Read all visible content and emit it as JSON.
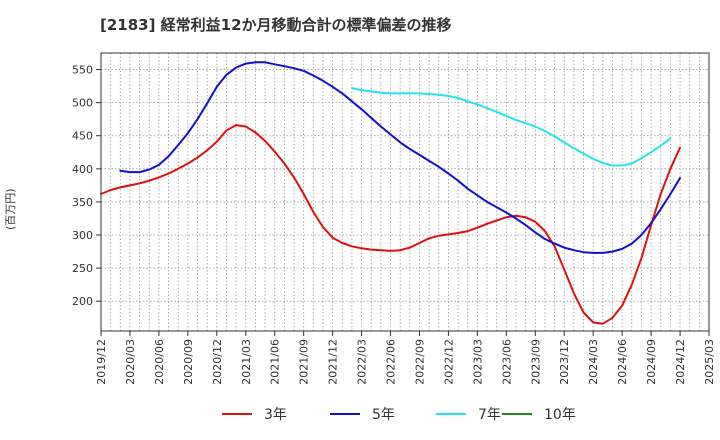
{
  "chart_data": {
    "type": "line",
    "title": "[2183]  経常利益12か月移動合計の標準偏差の推移",
    "xlabel": "",
    "ylabel": "(百万円)",
    "x": [
      "2019/12",
      "2020/03",
      "2020/06",
      "2020/09",
      "2020/12",
      "2021/03",
      "2021/06",
      "2021/09",
      "2021/12",
      "2022/03",
      "2022/06",
      "2022/09",
      "2022/12",
      "2023/03",
      "2023/06",
      "2023/09",
      "2023/12",
      "2024/03",
      "2024/06",
      "2024/09",
      "2024/12",
      "2025/03"
    ],
    "ylim": [
      155,
      575
    ],
    "yticks": [
      200,
      250,
      300,
      350,
      400,
      450,
      500,
      550
    ],
    "grid": true,
    "legend_position": "bottom",
    "series": [
      {
        "name": "3年",
        "color": "#dd1111",
        "points": [
          [
            "2019/12",
            362
          ],
          [
            "2020/01",
            368
          ],
          [
            "2020/02",
            372
          ],
          [
            "2020/03",
            375
          ],
          [
            "2020/04",
            378
          ],
          [
            "2020/05",
            382
          ],
          [
            "2020/06",
            387
          ],
          [
            "2020/07",
            393
          ],
          [
            "2020/08",
            400
          ],
          [
            "2020/09",
            408
          ],
          [
            "2020/10",
            417
          ],
          [
            "2020/11",
            428
          ],
          [
            "2020/12",
            441
          ],
          [
            "2021/01",
            458
          ],
          [
            "2021/02",
            466
          ],
          [
            "2021/03",
            464
          ],
          [
            "2021/04",
            455
          ],
          [
            "2021/05",
            442
          ],
          [
            "2021/06",
            426
          ],
          [
            "2021/07",
            408
          ],
          [
            "2021/08",
            387
          ],
          [
            "2021/09",
            362
          ],
          [
            "2021/10",
            335
          ],
          [
            "2021/11",
            312
          ],
          [
            "2021/12",
            296
          ],
          [
            "2022/01",
            288
          ],
          [
            "2022/02",
            283
          ],
          [
            "2022/03",
            280
          ],
          [
            "2022/04",
            278
          ],
          [
            "2022/05",
            277
          ],
          [
            "2022/06",
            276
          ],
          [
            "2022/07",
            277
          ],
          [
            "2022/08",
            281
          ],
          [
            "2022/09",
            288
          ],
          [
            "2022/10",
            295
          ],
          [
            "2022/11",
            299
          ],
          [
            "2022/12",
            301
          ],
          [
            "2023/01",
            303
          ],
          [
            "2023/02",
            306
          ],
          [
            "2023/03",
            311
          ],
          [
            "2023/04",
            317
          ],
          [
            "2023/05",
            322
          ],
          [
            "2023/06",
            327
          ],
          [
            "2023/07",
            329
          ],
          [
            "2023/08",
            327
          ],
          [
            "2023/09",
            320
          ],
          [
            "2023/10",
            306
          ],
          [
            "2023/11",
            283
          ],
          [
            "2023/12",
            248
          ],
          [
            "2024/01",
            212
          ],
          [
            "2024/02",
            183
          ],
          [
            "2024/03",
            168
          ],
          [
            "2024/04",
            166
          ],
          [
            "2024/05",
            175
          ],
          [
            "2024/06",
            193
          ],
          [
            "2024/07",
            225
          ],
          [
            "2024/08",
            265
          ],
          [
            "2024/09",
            315
          ],
          [
            "2024/10",
            362
          ],
          [
            "2024/11",
            400
          ],
          [
            "2024/12",
            432
          ]
        ]
      },
      {
        "name": "5年",
        "color": "#1111cc",
        "points": [
          [
            "2020/02",
            397
          ],
          [
            "2020/03",
            395
          ],
          [
            "2020/04",
            395
          ],
          [
            "2020/05",
            399
          ],
          [
            "2020/06",
            406
          ],
          [
            "2020/07",
            419
          ],
          [
            "2020/08",
            436
          ],
          [
            "2020/09",
            454
          ],
          [
            "2020/10",
            475
          ],
          [
            "2020/11",
            499
          ],
          [
            "2020/12",
            524
          ],
          [
            "2021/01",
            542
          ],
          [
            "2021/02",
            553
          ],
          [
            "2021/03",
            559
          ],
          [
            "2021/04",
            561
          ],
          [
            "2021/05",
            561
          ],
          [
            "2021/06",
            558
          ],
          [
            "2021/07",
            555
          ],
          [
            "2021/08",
            552
          ],
          [
            "2021/09",
            548
          ],
          [
            "2021/10",
            541
          ],
          [
            "2021/11",
            533
          ],
          [
            "2021/12",
            524
          ],
          [
            "2022/01",
            514
          ],
          [
            "2022/02",
            502
          ],
          [
            "2022/03",
            490
          ],
          [
            "2022/04",
            477
          ],
          [
            "2022/05",
            464
          ],
          [
            "2022/06",
            452
          ],
          [
            "2022/07",
            440
          ],
          [
            "2022/08",
            430
          ],
          [
            "2022/09",
            421
          ],
          [
            "2022/10",
            412
          ],
          [
            "2022/11",
            403
          ],
          [
            "2022/12",
            393
          ],
          [
            "2023/01",
            382
          ],
          [
            "2023/02",
            370
          ],
          [
            "2023/03",
            360
          ],
          [
            "2023/04",
            350
          ],
          [
            "2023/05",
            342
          ],
          [
            "2023/06",
            334
          ],
          [
            "2023/07",
            325
          ],
          [
            "2023/08",
            315
          ],
          [
            "2023/09",
            304
          ],
          [
            "2023/10",
            294
          ],
          [
            "2023/11",
            287
          ],
          [
            "2023/12",
            281
          ],
          [
            "2024/01",
            277
          ],
          [
            "2024/02",
            274
          ],
          [
            "2024/03",
            273
          ],
          [
            "2024/04",
            273
          ],
          [
            "2024/05",
            275
          ],
          [
            "2024/06",
            279
          ],
          [
            "2024/07",
            287
          ],
          [
            "2024/08",
            300
          ],
          [
            "2024/09",
            318
          ],
          [
            "2024/10",
            339
          ],
          [
            "2024/11",
            362
          ],
          [
            "2024/12",
            386
          ]
        ]
      },
      {
        "name": "7年",
        "color": "#22e5f0",
        "points": [
          [
            "2022/02",
            522
          ],
          [
            "2022/03",
            519
          ],
          [
            "2022/04",
            517
          ],
          [
            "2022/05",
            515
          ],
          [
            "2022/06",
            514
          ],
          [
            "2022/07",
            514
          ],
          [
            "2022/08",
            514
          ],
          [
            "2022/09",
            514
          ],
          [
            "2022/10",
            513
          ],
          [
            "2022/11",
            512
          ],
          [
            "2022/12",
            510
          ],
          [
            "2023/01",
            507
          ],
          [
            "2023/02",
            502
          ],
          [
            "2023/03",
            497
          ],
          [
            "2023/04",
            492
          ],
          [
            "2023/05",
            486
          ],
          [
            "2023/06",
            480
          ],
          [
            "2023/07",
            474
          ],
          [
            "2023/08",
            469
          ],
          [
            "2023/09",
            464
          ],
          [
            "2023/10",
            457
          ],
          [
            "2023/11",
            449
          ],
          [
            "2023/12",
            440
          ],
          [
            "2024/01",
            431
          ],
          [
            "2024/02",
            423
          ],
          [
            "2024/03",
            415
          ],
          [
            "2024/04",
            409
          ],
          [
            "2024/05",
            405
          ],
          [
            "2024/06",
            405
          ],
          [
            "2024/07",
            408
          ],
          [
            "2024/08",
            416
          ],
          [
            "2024/09",
            425
          ],
          [
            "2024/10",
            435
          ],
          [
            "2024/11",
            446
          ]
        ]
      },
      {
        "name": "10年",
        "color": "#228822",
        "points": []
      }
    ]
  }
}
